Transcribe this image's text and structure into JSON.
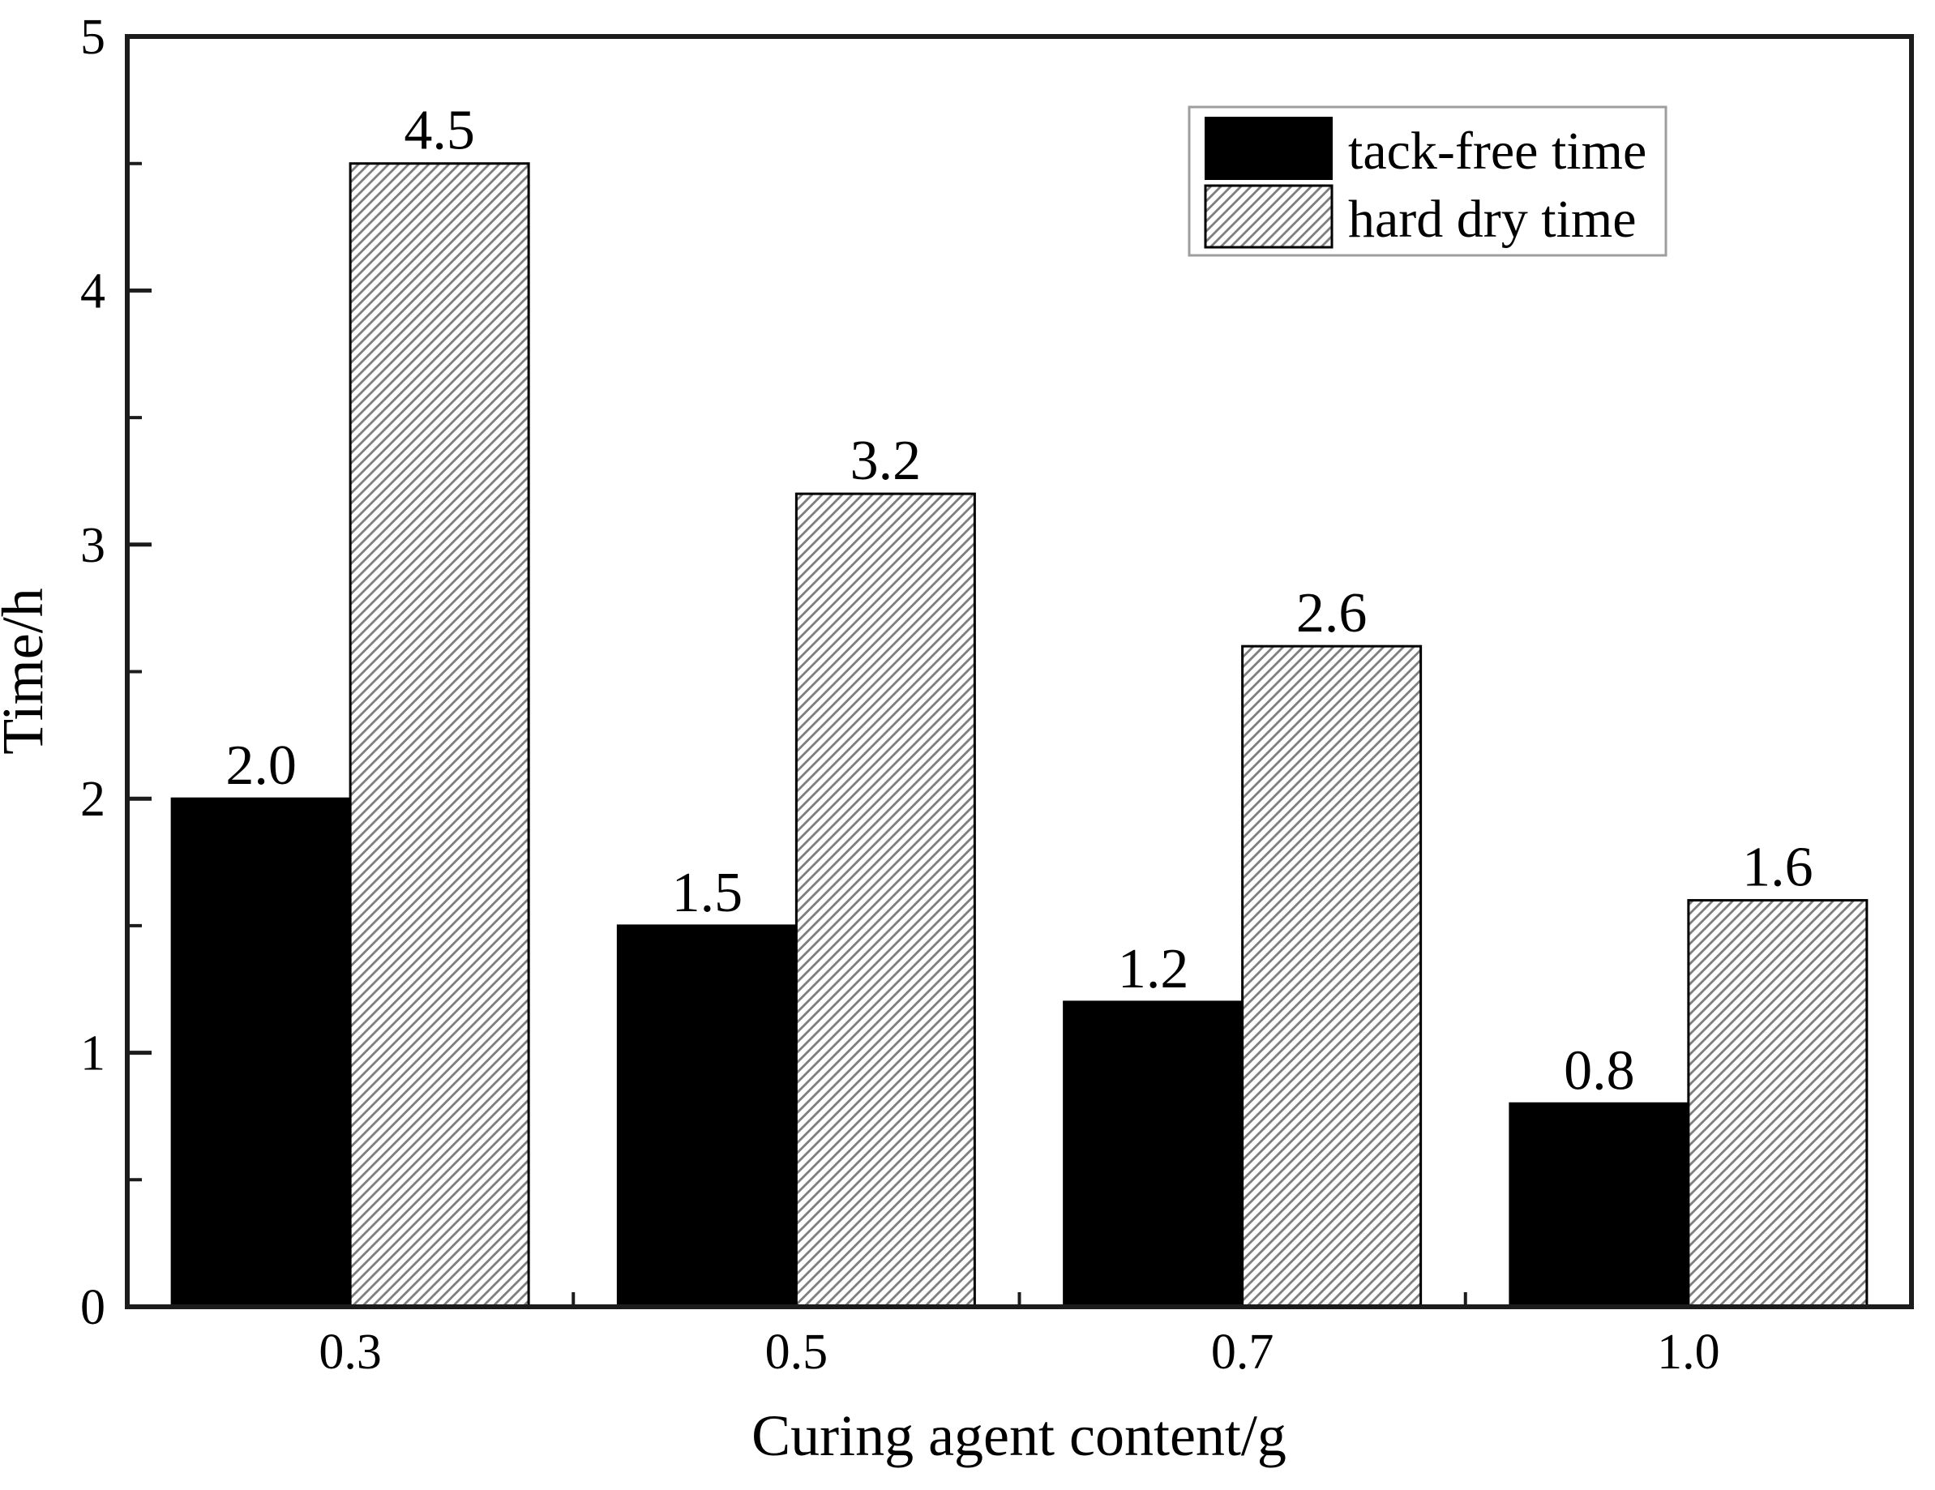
{
  "figure": {
    "background": "#ffffff"
  },
  "chart_data": {
    "type": "bar",
    "title": "",
    "xlabel": "Curing agent content/g",
    "ylabel": "Time/h",
    "categories": [
      "0.3",
      "0.5",
      "0.7",
      "1.0"
    ],
    "series": [
      {
        "name": "tack-free time",
        "style": "solid-black",
        "values": [
          2.0,
          1.5,
          1.2,
          0.8
        ],
        "value_labels": [
          "2.0",
          "1.5",
          "1.2",
          "0.8"
        ]
      },
      {
        "name": "hard dry time",
        "style": "diagonal-hatch",
        "values": [
          4.5,
          3.2,
          2.6,
          1.6
        ],
        "value_labels": [
          "4.5",
          "3.2",
          "2.6",
          "1.6"
        ]
      }
    ],
    "ylim": [
      0,
      5
    ],
    "yticks_major": [
      "0",
      "1",
      "2",
      "3",
      "4",
      "5"
    ],
    "yticks_minor": [
      0.5,
      1.5,
      2.5,
      3.5,
      4.5
    ],
    "xticks_minor_between_groups": true,
    "grid": false,
    "legend": {
      "position": "top-right",
      "entries": [
        "tack-free time",
        "hard dry time"
      ]
    },
    "colors": {
      "bar_fill": "#000000",
      "bar_border": "#000000",
      "hatch_line": "#7d7d7d",
      "hatch_background": "#ffffff",
      "axis": "#1c1c1c",
      "text": "#000000",
      "legend_border": "#9e9e9e",
      "background": "#ffffff"
    }
  }
}
